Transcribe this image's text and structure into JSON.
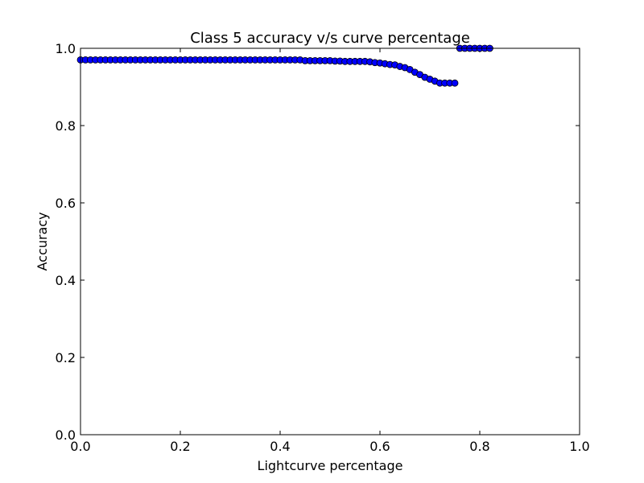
{
  "chart_data": {
    "type": "scatter",
    "title": "Class 5 accuracy v/s curve percentage",
    "xlabel": "Lightcurve percentage",
    "ylabel": "Accuracy",
    "xlim": [
      0.0,
      1.0
    ],
    "ylim": [
      0.0,
      1.0
    ],
    "grid": false,
    "x_ticks": [
      "0.0",
      "0.2",
      "0.4",
      "0.6",
      "0.8",
      "1.0"
    ],
    "y_ticks": [
      "0.0",
      "0.2",
      "0.4",
      "0.6",
      "0.8",
      "1.0"
    ],
    "marker_color": "#0000ff",
    "series": [
      {
        "x": [
          0.0,
          0.01,
          0.02,
          0.03,
          0.04,
          0.05,
          0.06,
          0.07,
          0.08,
          0.09,
          0.1,
          0.11,
          0.12,
          0.13,
          0.14,
          0.15,
          0.16,
          0.17,
          0.18,
          0.19,
          0.2,
          0.21,
          0.22,
          0.23,
          0.24,
          0.25,
          0.26,
          0.27,
          0.28,
          0.29,
          0.3,
          0.31,
          0.32,
          0.33,
          0.34,
          0.35,
          0.36,
          0.37,
          0.38,
          0.39,
          0.4,
          0.41,
          0.42,
          0.43,
          0.44,
          0.45,
          0.46,
          0.47,
          0.48,
          0.49,
          0.5,
          0.51,
          0.52,
          0.53,
          0.54,
          0.55,
          0.56,
          0.57,
          0.58,
          0.59,
          0.6,
          0.61,
          0.62,
          0.63,
          0.64,
          0.65,
          0.66,
          0.67,
          0.68,
          0.69,
          0.7,
          0.71,
          0.72,
          0.73,
          0.74,
          0.75,
          0.76,
          0.77,
          0.78,
          0.79,
          0.8,
          0.81,
          0.82
        ],
        "y": [
          0.97,
          0.97,
          0.97,
          0.97,
          0.97,
          0.97,
          0.97,
          0.97,
          0.97,
          0.97,
          0.97,
          0.97,
          0.97,
          0.97,
          0.97,
          0.97,
          0.97,
          0.97,
          0.97,
          0.97,
          0.97,
          0.97,
          0.97,
          0.97,
          0.97,
          0.97,
          0.97,
          0.97,
          0.97,
          0.97,
          0.97,
          0.97,
          0.97,
          0.97,
          0.97,
          0.97,
          0.97,
          0.97,
          0.97,
          0.97,
          0.97,
          0.97,
          0.97,
          0.97,
          0.97,
          0.968,
          0.968,
          0.968,
          0.968,
          0.968,
          0.968,
          0.967,
          0.967,
          0.966,
          0.966,
          0.966,
          0.966,
          0.966,
          0.965,
          0.963,
          0.962,
          0.96,
          0.958,
          0.957,
          0.953,
          0.95,
          0.945,
          0.938,
          0.932,
          0.925,
          0.92,
          0.915,
          0.91,
          0.91,
          0.91,
          0.91,
          1.0,
          1.0,
          1.0,
          1.0,
          1.0,
          1.0,
          1.0
        ]
      }
    ]
  }
}
